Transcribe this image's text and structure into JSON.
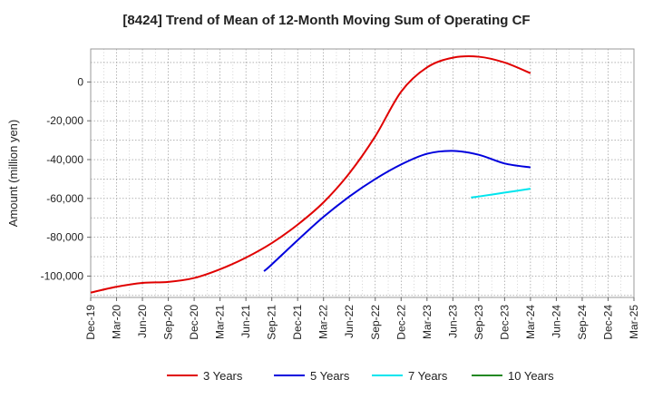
{
  "chart_data": {
    "type": "line",
    "title": "[8424]  Trend of Mean of 12-Month Moving Sum of Operating CF",
    "xlabel": "",
    "ylabel": "Amount (million yen)",
    "ylim": [
      -111000,
      17000
    ],
    "yticks": [
      0,
      -20000,
      -40000,
      -60000,
      -80000,
      -100000
    ],
    "ytick_labels": [
      "0",
      "-20,000",
      "-40,000",
      "-60,000",
      "-80,000",
      "-100,000"
    ],
    "x_categories": [
      "Dec-19",
      "Mar-20",
      "Jun-20",
      "Sep-20",
      "Dec-20",
      "Mar-21",
      "Jun-21",
      "Sep-21",
      "Dec-21",
      "Mar-22",
      "Jun-22",
      "Sep-22",
      "Dec-22",
      "Mar-23",
      "Jun-23",
      "Sep-23",
      "Dec-23",
      "Mar-24",
      "Jun-24",
      "Sep-24",
      "Dec-24",
      "Mar-25"
    ],
    "grid": true,
    "legend_position": "bottom",
    "series": [
      {
        "name": "3 Years",
        "color": "#e00000",
        "points": [
          [
            0,
            -108500
          ],
          [
            1,
            -105500
          ],
          [
            2,
            -103500
          ],
          [
            3,
            -103000
          ],
          [
            4,
            -101000
          ],
          [
            5,
            -96500
          ],
          [
            6,
            -90500
          ],
          [
            7,
            -83000
          ],
          [
            8,
            -73500
          ],
          [
            9,
            -62000
          ],
          [
            10,
            -47000
          ],
          [
            11,
            -28000
          ],
          [
            12,
            -5000
          ],
          [
            13,
            7500
          ],
          [
            14,
            12500
          ],
          [
            15,
            13000
          ],
          [
            16,
            10000
          ],
          [
            17,
            4500
          ]
        ]
      },
      {
        "name": "5 Years",
        "color": "#0000dd",
        "points": [
          [
            6.7,
            -97500
          ],
          [
            7,
            -94000
          ],
          [
            8,
            -81500
          ],
          [
            9,
            -69500
          ],
          [
            10,
            -59000
          ],
          [
            11,
            -50000
          ],
          [
            12,
            -42500
          ],
          [
            13,
            -37000
          ],
          [
            14,
            -35500
          ],
          [
            15,
            -37500
          ],
          [
            16,
            -42000
          ],
          [
            17,
            -44000
          ]
        ]
      },
      {
        "name": "7 Years",
        "color": "#00e5ee",
        "points": [
          [
            14.7,
            -59500
          ],
          [
            15,
            -59000
          ],
          [
            16,
            -57000
          ],
          [
            17,
            -55000
          ]
        ]
      },
      {
        "name": "10 Years",
        "color": "#228822",
        "points": []
      }
    ]
  }
}
